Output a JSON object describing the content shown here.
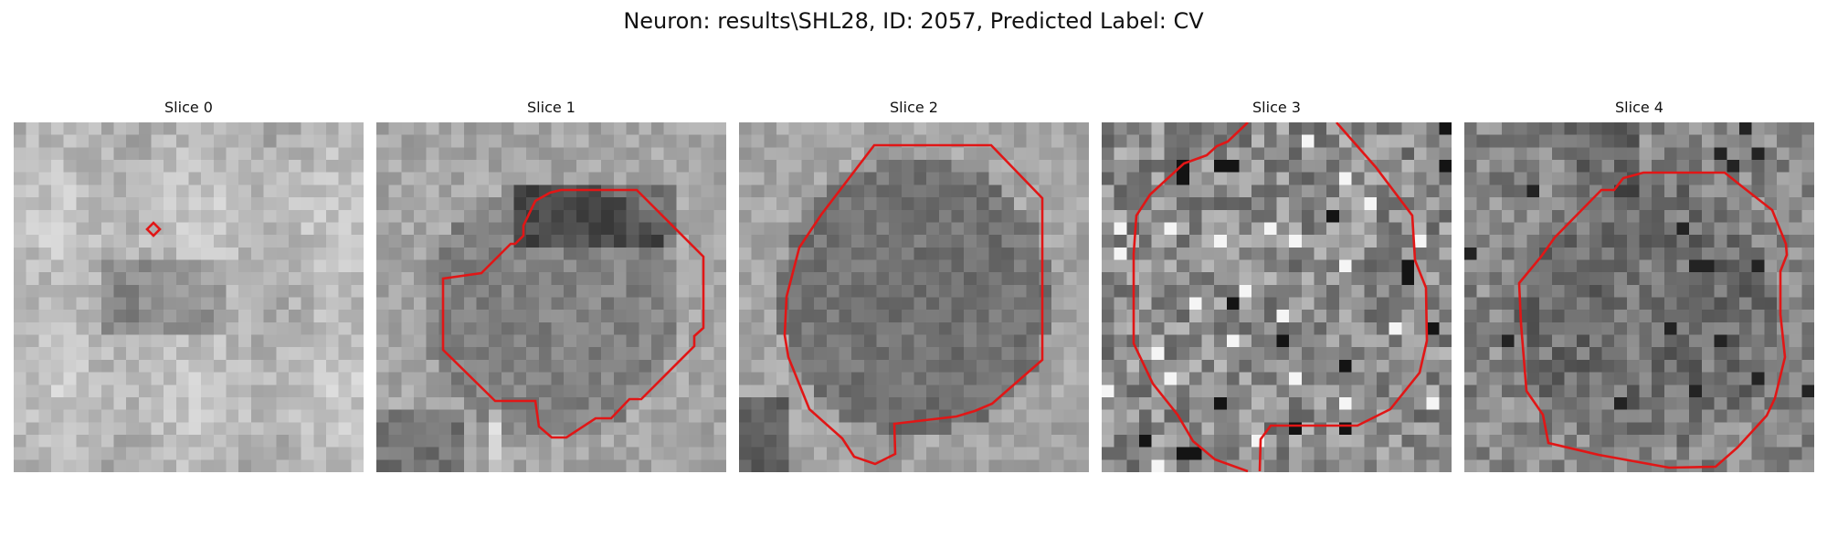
{
  "figure": {
    "title": "Neuron: results\\SHL28, ID: 2057, Predicted Label: CV",
    "outline_color": "#e11616"
  },
  "slices": [
    {
      "title": "Slice 0"
    },
    {
      "title": "Slice 1"
    },
    {
      "title": "Slice 2"
    },
    {
      "title": "Slice 3"
    },
    {
      "title": "Slice 4"
    }
  ]
}
